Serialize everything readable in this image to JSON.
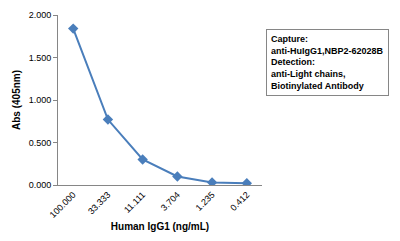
{
  "chart_data": {
    "type": "line",
    "x_label": "Human IgG1 (ng/mL)",
    "y_label": "Abs (405nm)",
    "categories": [
      "100.000",
      "33.333",
      "11.111",
      "3.704",
      "1.235",
      "0.412"
    ],
    "values": [
      1.84,
      0.77,
      0.3,
      0.1,
      0.03,
      0.02
    ],
    "color": "#4a7ebb",
    "marker": "diamond",
    "ylim": [
      0,
      2
    ],
    "yticks": [
      {
        "value": 0,
        "label": "0.000"
      },
      {
        "value": 0.5,
        "label": "0.500"
      },
      {
        "value": 1,
        "label": "1.000"
      },
      {
        "value": 1.5,
        "label": "1.500"
      },
      {
        "value": 2,
        "label": "2.000"
      }
    ],
    "grid": false,
    "annotations": [
      "Capture:",
      "anti-HuIgG1,NBP2-62028B",
      "Detection:",
      "anti-Light chains,",
      "Biotinylated Antibody"
    ]
  }
}
